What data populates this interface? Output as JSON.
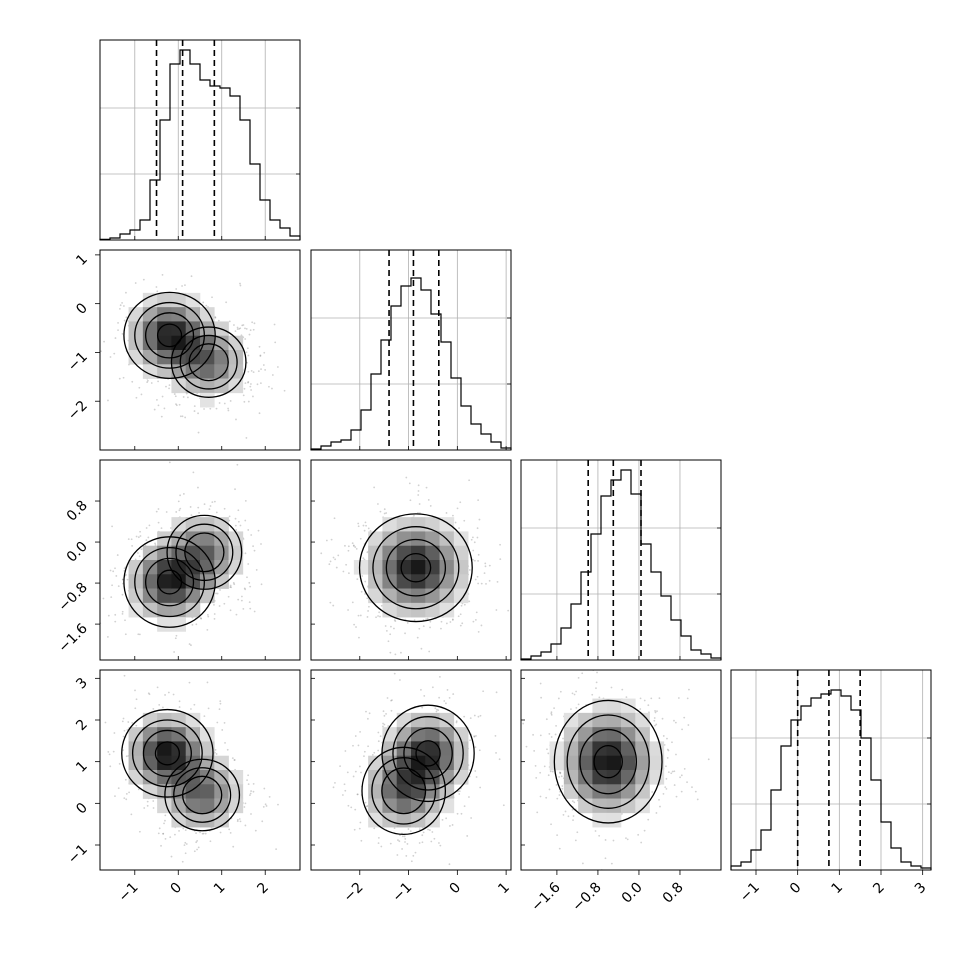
{
  "chart_data": {
    "type": "corner",
    "parameters": [
      {
        "index": 0,
        "range": [
          -1.8,
          2.8
        ],
        "ticks": [
          -1,
          0,
          1,
          2
        ],
        "tick_labels": [
          "−1",
          "0",
          "1",
          "2"
        ],
        "mean": 0.15,
        "std": 0.6,
        "quantiles": [
          -0.5,
          0.1,
          0.83
        ],
        "hist": [
          0.003,
          0.01,
          0.03,
          0.05,
          0.1,
          0.3,
          0.6,
          0.88,
          0.95,
          0.88,
          0.8,
          0.77,
          0.76,
          0.72,
          0.6,
          0.38,
          0.2,
          0.1,
          0.06,
          0.02
        ]
      },
      {
        "index": 1,
        "range": [
          -3.0,
          1.1
        ],
        "ticks": [
          -2,
          -1,
          0,
          1
        ],
        "tick_labels": [
          "−2",
          "−1",
          "0",
          "1"
        ],
        "mean": -0.9,
        "std": 0.55,
        "quantiles": [
          -1.4,
          -0.9,
          -0.38
        ],
        "hist": [
          0.005,
          0.02,
          0.04,
          0.05,
          0.1,
          0.2,
          0.38,
          0.55,
          0.72,
          0.82,
          0.86,
          0.8,
          0.68,
          0.54,
          0.36,
          0.22,
          0.13,
          0.08,
          0.04,
          0.01
        ]
      },
      {
        "index": 2,
        "range": [
          -2.3,
          1.6
        ],
        "ticks": [
          -1.6,
          -0.8,
          0.0,
          0.8
        ],
        "tick_labels": [
          "−1.6",
          "−0.8",
          "0.0",
          "0.8"
        ],
        "mean": -0.48,
        "std": 0.5,
        "quantiles": [
          -0.99,
          -0.5,
          0.04
        ],
        "hist": [
          0.005,
          0.02,
          0.04,
          0.08,
          0.16,
          0.28,
          0.44,
          0.63,
          0.82,
          0.9,
          0.95,
          0.83,
          0.58,
          0.44,
          0.32,
          0.2,
          0.12,
          0.05,
          0.03,
          0.01
        ]
      },
      {
        "index": 3,
        "range": [
          -1.6,
          3.2
        ],
        "ticks": [
          -1,
          0,
          1,
          2,
          3
        ],
        "tick_labels": [
          "−1",
          "0",
          "1",
          "2",
          "3"
        ],
        "mean": 0.75,
        "std": 0.7,
        "quantiles": [
          0.0,
          0.75,
          1.5
        ],
        "hist": [
          0.02,
          0.04,
          0.1,
          0.2,
          0.4,
          0.62,
          0.75,
          0.82,
          0.86,
          0.88,
          0.9,
          0.87,
          0.8,
          0.66,
          0.45,
          0.24,
          0.11,
          0.04,
          0.02,
          0.01
        ]
      }
    ],
    "pairs": [
      {
        "row": 1,
        "col": 0,
        "modes": [
          [
            -0.2,
            -0.65,
            0.6
          ],
          [
            0.7,
            -1.2,
            0.4
          ]
        ],
        "spread": [
          0.5,
          0.42
        ]
      },
      {
        "row": 2,
        "col": 0,
        "modes": [
          [
            -0.2,
            -0.78,
            0.6
          ],
          [
            0.6,
            -0.2,
            0.4
          ]
        ],
        "spread": [
          0.5,
          0.42
        ]
      },
      {
        "row": 2,
        "col": 1,
        "modes": [
          [
            -0.85,
            -0.5,
            1.0
          ]
        ],
        "spread": [
          0.55,
          0.5
        ]
      },
      {
        "row": 3,
        "col": 0,
        "modes": [
          [
            -0.25,
            1.2,
            0.6
          ],
          [
            0.55,
            0.2,
            0.4
          ]
        ],
        "spread": [
          0.5,
          0.5
        ]
      },
      {
        "row": 3,
        "col": 1,
        "modes": [
          [
            -1.1,
            0.3,
            0.45
          ],
          [
            -0.6,
            1.2,
            0.55
          ]
        ],
        "spread": [
          0.45,
          0.55
        ]
      },
      {
        "row": 3,
        "col": 2,
        "modes": [
          [
            -0.6,
            1.0,
            1.0
          ]
        ],
        "spread": [
          0.5,
          0.7
        ]
      }
    ]
  }
}
